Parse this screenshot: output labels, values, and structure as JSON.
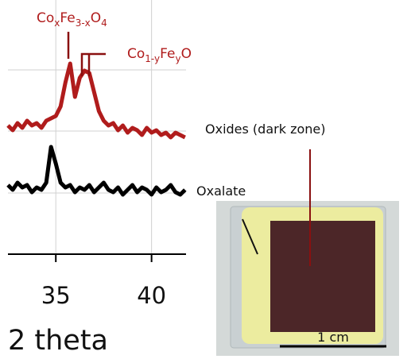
{
  "chart_data": {
    "type": "line",
    "x": [
      32.5,
      32.75,
      33,
      33.25,
      33.5,
      33.75,
      34,
      34.25,
      34.5,
      34.75,
      35,
      35.25,
      35.5,
      35.75,
      36,
      36.25,
      36.5,
      36.75,
      37,
      37.25,
      37.5,
      37.75,
      38,
      38.25,
      38.5,
      38.75,
      39,
      39.25,
      39.5,
      39.75,
      40,
      40.25,
      40.5,
      40.75,
      41,
      41.25,
      41.5,
      41.75
    ],
    "series": [
      {
        "color": "#b01c1c",
        "values": [
          54,
          52,
          55,
          53,
          56,
          54,
          55,
          53,
          56,
          57,
          58,
          62,
          72,
          80,
          66,
          74,
          77,
          76,
          68,
          60,
          56,
          54,
          55,
          52,
          54,
          51,
          53,
          52,
          50,
          53,
          51,
          52,
          50,
          51,
          49,
          51,
          50,
          49
        ]
      },
      {
        "color": "#000000",
        "values": [
          29,
          27,
          30,
          28,
          29,
          26,
          28,
          27,
          30,
          45,
          38,
          30,
          28,
          29,
          26,
          28,
          27,
          29,
          26,
          28,
          30,
          27,
          26,
          28,
          25,
          27,
          29,
          26,
          28,
          27,
          25,
          28,
          26,
          27,
          29,
          26,
          25,
          27
        ]
      }
    ],
    "xlim": [
      32.5,
      41.8
    ],
    "xticks": [
      35,
      40
    ],
    "ylim": [
      0,
      100
    ],
    "xlabel": "2 theta",
    "grid": true,
    "annotations": [
      [
        "Co",
        "x",
        "Fe",
        "3-x",
        "O",
        "4"
      ],
      [
        "Co",
        "1-y",
        "Fe",
        "y",
        "O"
      ]
    ]
  },
  "photo": {
    "labels": [
      "Oxides (dark zone)",
      "Oxalate"
    ],
    "scale_bar": "1 cm"
  }
}
